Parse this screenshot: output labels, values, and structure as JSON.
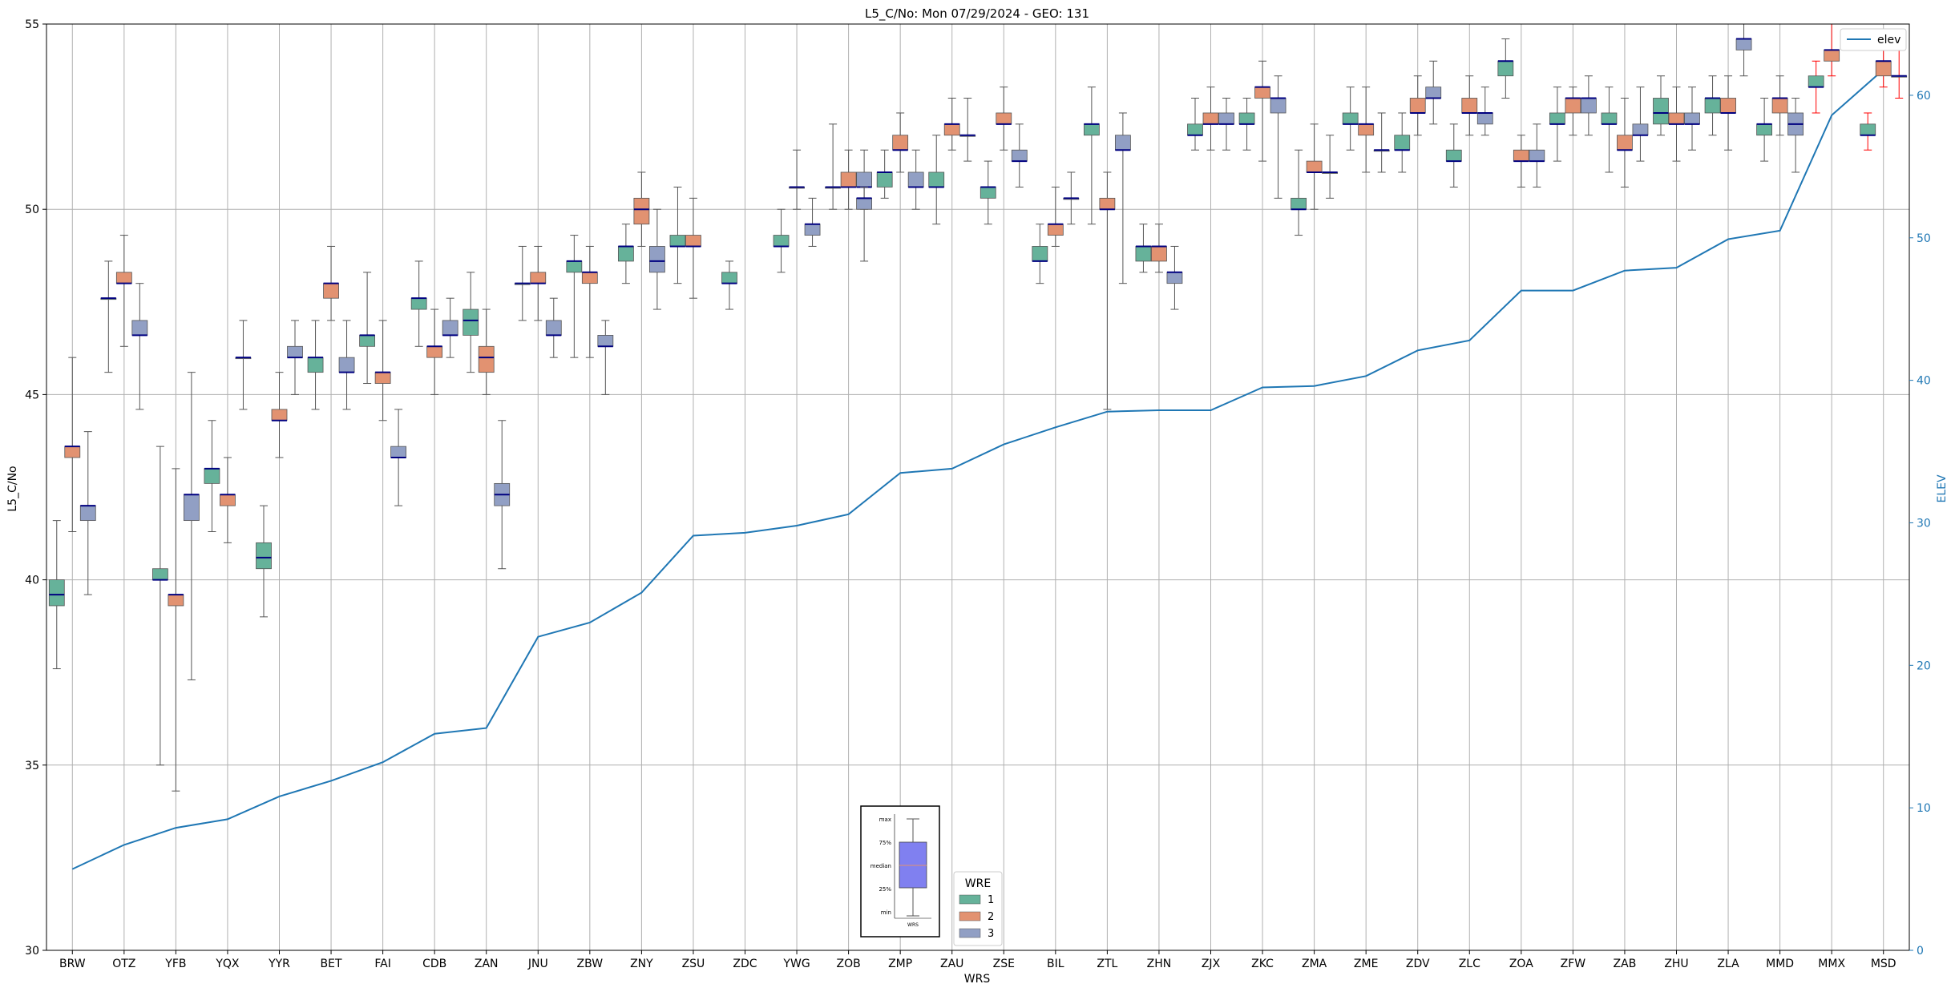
{
  "chart_data": {
    "type": "box",
    "title": "L5_C/No: Mon 07/29/2024 - GEO: 131",
    "xlabel": "WRS",
    "ylabel": "L5_C/No",
    "y2label": "ELEV",
    "ylim": [
      30,
      55
    ],
    "y2lim": [
      0,
      65
    ],
    "yticks": [
      30,
      35,
      40,
      45,
      50,
      55
    ],
    "y2ticks": [
      0,
      10,
      20,
      30,
      40,
      50,
      60
    ],
    "grid": true,
    "categories": [
      "BRW",
      "OTZ",
      "YFB",
      "YQX",
      "YYR",
      "BET",
      "FAI",
      "CDB",
      "ZAN",
      "JNU",
      "ZBW",
      "ZNY",
      "ZSU",
      "ZDC",
      "YWG",
      "ZOB",
      "ZMP",
      "ZAU",
      "ZSE",
      "BIL",
      "ZTL",
      "ZHN",
      "ZJX",
      "ZKC",
      "ZMA",
      "ZME",
      "ZDV",
      "ZLC",
      "ZOA",
      "ZFW",
      "ZAB",
      "ZHU",
      "ZLA",
      "MMD",
      "MMX",
      "MSD"
    ],
    "elev": {
      "name": "elev",
      "color": "#1f77b4",
      "values": [
        5.7,
        7.4,
        8.6,
        9.2,
        10.8,
        11.9,
        13.2,
        15.2,
        15.6,
        22.0,
        23.0,
        25.1,
        29.1,
        29.3,
        29.8,
        30.6,
        33.5,
        33.8,
        35.5,
        36.7,
        37.8,
        37.9,
        37.9,
        39.5,
        39.6,
        40.3,
        42.1,
        42.8,
        46.3,
        46.3,
        47.7,
        47.9,
        49.9,
        50.5,
        58.6,
        61.8
      ]
    },
    "legend_elev": {
      "label": "elev",
      "position": "upper-right"
    },
    "legend_wre": {
      "title": "WRE",
      "position": "lower-center",
      "items": [
        {
          "label": "1",
          "color": "#66b29a"
        },
        {
          "label": "2",
          "color": "#e29271"
        },
        {
          "label": "3",
          "color": "#919fc4"
        }
      ]
    },
    "key_legend": {
      "labels": [
        "max",
        "75%",
        "median",
        "25%",
        "min"
      ],
      "xlabel": "WRS",
      "fill": "#8080f0"
    },
    "colors": {
      "1": "#66b29a",
      "2": "#e29271",
      "3": "#919fc4",
      "median": "#000080",
      "outlier_whisker": "#ff0000",
      "elev": "#1f77b4"
    },
    "boxes": [
      {
        "cat": "BRW",
        "wre": 1,
        "min": 37.6,
        "q1": 39.3,
        "med": 39.6,
        "q3": 40.0,
        "max": 41.6
      },
      {
        "cat": "BRW",
        "wre": 2,
        "min": 41.3,
        "q1": 43.3,
        "med": 43.6,
        "q3": 43.6,
        "max": 46.0
      },
      {
        "cat": "BRW",
        "wre": 3,
        "min": 39.6,
        "q1": 41.6,
        "med": 42.0,
        "q3": 42.0,
        "max": 44.0
      },
      {
        "cat": "OTZ",
        "wre": 1,
        "min": 45.6,
        "q1": 47.6,
        "med": 47.6,
        "q3": 47.6,
        "max": 48.6
      },
      {
        "cat": "OTZ",
        "wre": 2,
        "min": 46.3,
        "q1": 48.0,
        "med": 48.0,
        "q3": 48.3,
        "max": 49.3
      },
      {
        "cat": "OTZ",
        "wre": 3,
        "min": 44.6,
        "q1": 46.6,
        "med": 46.6,
        "q3": 47.0,
        "max": 48.0
      },
      {
        "cat": "YFB",
        "wre": 1,
        "min": 35.0,
        "q1": 40.0,
        "med": 40.0,
        "q3": 40.3,
        "max": 43.6
      },
      {
        "cat": "YFB",
        "wre": 2,
        "min": 34.3,
        "q1": 39.3,
        "med": 39.6,
        "q3": 39.6,
        "max": 43.0
      },
      {
        "cat": "YFB",
        "wre": 3,
        "min": 37.3,
        "q1": 41.6,
        "med": 42.3,
        "q3": 42.3,
        "max": 45.6
      },
      {
        "cat": "YQX",
        "wre": 1,
        "min": 41.3,
        "q1": 42.6,
        "med": 43.0,
        "q3": 43.0,
        "max": 44.3
      },
      {
        "cat": "YQX",
        "wre": 2,
        "min": 41.0,
        "q1": 42.0,
        "med": 42.3,
        "q3": 42.3,
        "max": 43.3
      },
      {
        "cat": "YQX",
        "wre": 3,
        "min": 44.6,
        "q1": 46.0,
        "med": 46.0,
        "q3": 46.0,
        "max": 47.0
      },
      {
        "cat": "YYR",
        "wre": 1,
        "min": 39.0,
        "q1": 40.3,
        "med": 40.6,
        "q3": 41.0,
        "max": 42.0
      },
      {
        "cat": "YYR",
        "wre": 2,
        "min": 43.3,
        "q1": 44.3,
        "med": 44.3,
        "q3": 44.6,
        "max": 45.6
      },
      {
        "cat": "YYR",
        "wre": 3,
        "min": 45.0,
        "q1": 46.0,
        "med": 46.0,
        "q3": 46.3,
        "max": 47.0
      },
      {
        "cat": "BET",
        "wre": 1,
        "min": 44.6,
        "q1": 45.6,
        "med": 46.0,
        "q3": 46.0,
        "max": 47.0
      },
      {
        "cat": "BET",
        "wre": 2,
        "min": 47.0,
        "q1": 47.6,
        "med": 48.0,
        "q3": 48.0,
        "max": 49.0
      },
      {
        "cat": "BET",
        "wre": 3,
        "min": 44.6,
        "q1": 45.6,
        "med": 45.6,
        "q3": 46.0,
        "max": 47.0
      },
      {
        "cat": "FAI",
        "wre": 1,
        "min": 45.3,
        "q1": 46.3,
        "med": 46.6,
        "q3": 46.6,
        "max": 48.3
      },
      {
        "cat": "FAI",
        "wre": 2,
        "min": 44.3,
        "q1": 45.3,
        "med": 45.6,
        "q3": 45.6,
        "max": 47.0
      },
      {
        "cat": "FAI",
        "wre": 3,
        "min": 42.0,
        "q1": 43.3,
        "med": 43.3,
        "q3": 43.6,
        "max": 44.6
      },
      {
        "cat": "CDB",
        "wre": 1,
        "min": 46.3,
        "q1": 47.3,
        "med": 47.6,
        "q3": 47.6,
        "max": 48.6
      },
      {
        "cat": "CDB",
        "wre": 2,
        "min": 45.0,
        "q1": 46.0,
        "med": 46.3,
        "q3": 46.3,
        "max": 47.3
      },
      {
        "cat": "CDB",
        "wre": 3,
        "min": 46.0,
        "q1": 46.6,
        "med": 46.6,
        "q3": 47.0,
        "max": 47.6
      },
      {
        "cat": "ZAN",
        "wre": 1,
        "min": 45.6,
        "q1": 46.6,
        "med": 47.0,
        "q3": 47.3,
        "max": 48.3
      },
      {
        "cat": "ZAN",
        "wre": 2,
        "min": 45.0,
        "q1": 45.6,
        "med": 46.0,
        "q3": 46.3,
        "max": 47.3
      },
      {
        "cat": "ZAN",
        "wre": 3,
        "min": 40.3,
        "q1": 42.0,
        "med": 42.3,
        "q3": 42.6,
        "max": 44.3
      },
      {
        "cat": "JNU",
        "wre": 1,
        "min": 47.0,
        "q1": 48.0,
        "med": 48.0,
        "q3": 48.0,
        "max": 49.0
      },
      {
        "cat": "JNU",
        "wre": 2,
        "min": 47.0,
        "q1": 48.0,
        "med": 48.0,
        "q3": 48.3,
        "max": 49.0
      },
      {
        "cat": "JNU",
        "wre": 3,
        "min": 46.0,
        "q1": 46.6,
        "med": 46.6,
        "q3": 47.0,
        "max": 47.6
      },
      {
        "cat": "ZBW",
        "wre": 1,
        "min": 46.0,
        "q1": 48.3,
        "med": 48.6,
        "q3": 48.6,
        "max": 49.3
      },
      {
        "cat": "ZBW",
        "wre": 2,
        "min": 46.0,
        "q1": 48.0,
        "med": 48.3,
        "q3": 48.3,
        "max": 49.0
      },
      {
        "cat": "ZBW",
        "wre": 3,
        "min": 45.0,
        "q1": 46.3,
        "med": 46.3,
        "q3": 46.6,
        "max": 47.0
      },
      {
        "cat": "ZNY",
        "wre": 1,
        "min": 48.0,
        "q1": 48.6,
        "med": 49.0,
        "q3": 49.0,
        "max": 49.6
      },
      {
        "cat": "ZNY",
        "wre": 2,
        "min": 49.0,
        "q1": 49.6,
        "med": 50.0,
        "q3": 50.3,
        "max": 51.0
      },
      {
        "cat": "ZNY",
        "wre": 3,
        "min": 47.3,
        "q1": 48.3,
        "med": 48.6,
        "q3": 49.0,
        "max": 50.0
      },
      {
        "cat": "ZSU",
        "wre": 1,
        "min": 48.0,
        "q1": 49.0,
        "med": 49.0,
        "q3": 49.3,
        "max": 50.6
      },
      {
        "cat": "ZSU",
        "wre": 2,
        "min": 47.6,
        "q1": 49.0,
        "med": 49.0,
        "q3": 49.3,
        "max": 50.3
      },
      {
        "cat": "ZDC",
        "wre": 1,
        "min": 47.3,
        "q1": 48.0,
        "med": 48.0,
        "q3": 48.3,
        "max": 48.6
      },
      {
        "cat": "YWG",
        "wre": 3,
        "min": 49.0,
        "q1": 49.3,
        "med": 49.6,
        "q3": 49.6,
        "max": 50.3
      },
      {
        "cat": "YWG",
        "wre": 1,
        "min": 48.3,
        "q1": 49.0,
        "med": 49.0,
        "q3": 49.3,
        "max": 50.0
      },
      {
        "cat": "YWG",
        "wre": 2,
        "min": 50.0,
        "q1": 50.6,
        "med": 50.6,
        "q3": 50.6,
        "max": 51.6
      },
      {
        "cat": "ZOB",
        "wre": 3,
        "min": 50.0,
        "q1": 50.6,
        "med": 50.6,
        "q3": 51.0,
        "max": 51.6
      },
      {
        "cat": "ZOB",
        "wre": 1,
        "min": 50.0,
        "q1": 50.6,
        "med": 50.6,
        "q3": 50.6,
        "max": 52.3
      },
      {
        "cat": "ZOB",
        "wre": 2,
        "min": 50.0,
        "q1": 50.6,
        "med": 50.6,
        "q3": 51.0,
        "max": 51.6
      },
      {
        "cat": "ZOB",
        "wre": 3,
        "min": 48.6,
        "q1": 50.0,
        "med": 50.3,
        "q3": 50.3,
        "max": 50.6
      },
      {
        "cat": "ZMP",
        "wre": 1,
        "min": 50.3,
        "q1": 50.6,
        "med": 51.0,
        "q3": 51.0,
        "max": 51.6
      },
      {
        "cat": "ZMP",
        "wre": 2,
        "min": 51.0,
        "q1": 51.6,
        "med": 51.6,
        "q3": 52.0,
        "max": 52.6
      },
      {
        "cat": "ZMP",
        "wre": 3,
        "min": 50.0,
        "q1": 50.6,
        "med": 50.6,
        "q3": 51.0,
        "max": 51.6
      },
      {
        "cat": "ZAU",
        "wre": 1,
        "min": 49.6,
        "q1": 50.6,
        "med": 50.6,
        "q3": 51.0,
        "max": 52.0
      },
      {
        "cat": "ZAU",
        "wre": 2,
        "min": 51.6,
        "q1": 52.0,
        "med": 52.3,
        "q3": 52.3,
        "max": 53.0
      },
      {
        "cat": "ZAU",
        "wre": 3,
        "min": 51.3,
        "q1": 52.0,
        "med": 52.0,
        "q3": 52.0,
        "max": 53.0
      },
      {
        "cat": "ZSE",
        "wre": 1,
        "min": 49.6,
        "q1": 50.3,
        "med": 50.6,
        "q3": 50.6,
        "max": 51.3
      },
      {
        "cat": "ZSE",
        "wre": 2,
        "min": 51.6,
        "q1": 52.3,
        "med": 52.3,
        "q3": 52.6,
        "max": 53.3
      },
      {
        "cat": "ZSE",
        "wre": 3,
        "min": 50.6,
        "q1": 51.3,
        "med": 51.3,
        "q3": 51.6,
        "max": 52.3
      },
      {
        "cat": "BIL",
        "wre": 1,
        "min": 48.0,
        "q1": 48.6,
        "med": 48.6,
        "q3": 49.0,
        "max": 49.6
      },
      {
        "cat": "BIL",
        "wre": 2,
        "min": 49.0,
        "q1": 49.3,
        "med": 49.6,
        "q3": 49.6,
        "max": 50.6
      },
      {
        "cat": "BIL",
        "wre": 3,
        "min": 49.6,
        "q1": 50.3,
        "med": 50.3,
        "q3": 50.3,
        "max": 51.0
      },
      {
        "cat": "ZTL",
        "wre": 1,
        "min": 49.6,
        "q1": 52.0,
        "med": 52.3,
        "q3": 52.3,
        "max": 53.3
      },
      {
        "cat": "ZTL",
        "wre": 2,
        "min": 44.6,
        "q1": 50.0,
        "med": 50.0,
        "q3": 50.3,
        "max": 51.0
      },
      {
        "cat": "ZTL",
        "wre": 3,
        "min": 48.0,
        "q1": 51.6,
        "med": 51.6,
        "q3": 52.0,
        "max": 52.6
      },
      {
        "cat": "ZHN",
        "wre": 1,
        "min": 48.3,
        "q1": 48.6,
        "med": 49.0,
        "q3": 49.0,
        "max": 49.6
      },
      {
        "cat": "ZHN",
        "wre": 2,
        "min": 48.3,
        "q1": 48.6,
        "med": 49.0,
        "q3": 49.0,
        "max": 49.6
      },
      {
        "cat": "ZHN",
        "wre": 3,
        "min": 47.3,
        "q1": 48.0,
        "med": 48.3,
        "q3": 48.3,
        "max": 49.0
      },
      {
        "cat": "ZJX",
        "wre": 1,
        "min": 51.6,
        "q1": 52.0,
        "med": 52.0,
        "q3": 52.3,
        "max": 53.0
      },
      {
        "cat": "ZJX",
        "wre": 2,
        "min": 51.6,
        "q1": 52.3,
        "med": 52.3,
        "q3": 52.6,
        "max": 53.3
      },
      {
        "cat": "ZJX",
        "wre": 3,
        "min": 51.6,
        "q1": 52.3,
        "med": 52.3,
        "q3": 52.6,
        "max": 53.0
      },
      {
        "cat": "ZKC",
        "wre": 1,
        "min": 51.6,
        "q1": 52.3,
        "med": 52.3,
        "q3": 52.6,
        "max": 53.0
      },
      {
        "cat": "ZKC",
        "wre": 2,
        "min": 51.3,
        "q1": 53.0,
        "med": 53.3,
        "q3": 53.3,
        "max": 54.0
      },
      {
        "cat": "ZKC",
        "wre": 3,
        "min": 50.3,
        "q1": 52.6,
        "med": 53.0,
        "q3": 53.0,
        "max": 53.6
      },
      {
        "cat": "ZMA",
        "wre": 1,
        "min": 49.3,
        "q1": 50.0,
        "med": 50.0,
        "q3": 50.3,
        "max": 51.6
      },
      {
        "cat": "ZMA",
        "wre": 2,
        "min": 50.0,
        "q1": 51.0,
        "med": 51.0,
        "q3": 51.3,
        "max": 52.3
      },
      {
        "cat": "ZMA",
        "wre": 3,
        "min": 50.3,
        "q1": 51.0,
        "med": 51.0,
        "q3": 51.0,
        "max": 52.0
      },
      {
        "cat": "ZME",
        "wre": 1,
        "min": 51.6,
        "q1": 52.3,
        "med": 52.3,
        "q3": 52.6,
        "max": 53.3
      },
      {
        "cat": "ZME",
        "wre": 2,
        "min": 51.0,
        "q1": 52.0,
        "med": 52.3,
        "q3": 52.3,
        "max": 53.3
      },
      {
        "cat": "ZME",
        "wre": 3,
        "min": 51.0,
        "q1": 51.6,
        "med": 51.6,
        "q3": 51.6,
        "max": 52.6
      },
      {
        "cat": "ZDV",
        "wre": 1,
        "min": 51.0,
        "q1": 51.6,
        "med": 51.6,
        "q3": 52.0,
        "max": 52.6
      },
      {
        "cat": "ZDV",
        "wre": 2,
        "min": 52.0,
        "q1": 52.6,
        "med": 52.6,
        "q3": 53.0,
        "max": 53.6
      },
      {
        "cat": "ZDV",
        "wre": 3,
        "min": 52.3,
        "q1": 53.0,
        "med": 53.0,
        "q3": 53.3,
        "max": 54.0
      },
      {
        "cat": "ZLC",
        "wre": 1,
        "min": 50.6,
        "q1": 51.3,
        "med": 51.3,
        "q3": 51.6,
        "max": 52.3
      },
      {
        "cat": "ZLC",
        "wre": 2,
        "min": 52.0,
        "q1": 52.6,
        "med": 52.6,
        "q3": 53.0,
        "max": 53.6
      },
      {
        "cat": "ZLC",
        "wre": 3,
        "min": 52.0,
        "q1": 52.3,
        "med": 52.6,
        "q3": 52.6,
        "max": 53.3
      },
      {
        "cat": "ZOA",
        "wre": 1,
        "min": 53.0,
        "q1": 53.6,
        "med": 54.0,
        "q3": 54.0,
        "max": 54.6
      },
      {
        "cat": "ZOA",
        "wre": 2,
        "min": 50.6,
        "q1": 51.3,
        "med": 51.3,
        "q3": 51.6,
        "max": 52.0
      },
      {
        "cat": "ZOA",
        "wre": 3,
        "min": 50.6,
        "q1": 51.3,
        "med": 51.3,
        "q3": 51.6,
        "max": 52.3
      },
      {
        "cat": "ZFW",
        "wre": 1,
        "min": 51.3,
        "q1": 52.3,
        "med": 52.3,
        "q3": 52.6,
        "max": 53.3
      },
      {
        "cat": "ZFW",
        "wre": 2,
        "min": 52.0,
        "q1": 52.6,
        "med": 53.0,
        "q3": 53.0,
        "max": 53.3
      },
      {
        "cat": "ZFW",
        "wre": 3,
        "min": 52.0,
        "q1": 52.6,
        "med": 53.0,
        "q3": 53.0,
        "max": 53.6
      },
      {
        "cat": "ZAB",
        "wre": 1,
        "min": 51.0,
        "q1": 52.3,
        "med": 52.3,
        "q3": 52.6,
        "max": 53.3
      },
      {
        "cat": "ZAB",
        "wre": 2,
        "min": 50.6,
        "q1": 51.6,
        "med": 51.6,
        "q3": 52.0,
        "max": 53.0
      },
      {
        "cat": "ZAB",
        "wre": 3,
        "min": 51.3,
        "q1": 52.0,
        "med": 52.0,
        "q3": 52.3,
        "max": 53.3
      },
      {
        "cat": "ZHU",
        "wre": 1,
        "min": 52.0,
        "q1": 52.3,
        "med": 52.6,
        "q3": 53.0,
        "max": 53.6
      },
      {
        "cat": "ZHU",
        "wre": 2,
        "min": 51.3,
        "q1": 52.3,
        "med": 52.3,
        "q3": 52.6,
        "max": 53.3
      },
      {
        "cat": "ZHU",
        "wre": 3,
        "min": 51.6,
        "q1": 52.3,
        "med": 52.3,
        "q3": 52.6,
        "max": 53.3
      },
      {
        "cat": "ZLA",
        "wre": 1,
        "min": 52.0,
        "q1": 52.6,
        "med": 53.0,
        "q3": 53.0,
        "max": 53.6
      },
      {
        "cat": "ZLA",
        "wre": 2,
        "min": 51.6,
        "q1": 52.6,
        "med": 52.6,
        "q3": 53.0,
        "max": 53.6
      },
      {
        "cat": "ZLA",
        "wre": 3,
        "min": 53.6,
        "q1": 54.3,
        "med": 54.6,
        "q3": 54.6,
        "max": 55.0
      },
      {
        "cat": "MMD",
        "wre": 1,
        "min": 51.3,
        "q1": 52.0,
        "med": 52.3,
        "q3": 52.3,
        "max": 53.0
      },
      {
        "cat": "MMD",
        "wre": 2,
        "min": 52.0,
        "q1": 52.6,
        "med": 53.0,
        "q3": 53.0,
        "max": 53.6
      },
      {
        "cat": "MMD",
        "wre": 3,
        "min": 51.0,
        "q1": 52.0,
        "med": 52.3,
        "q3": 52.6,
        "max": 53.0
      },
      {
        "cat": "MMX",
        "wre": 1,
        "min": 52.6,
        "q1": 53.3,
        "med": 53.3,
        "q3": 53.6,
        "max": 54.0,
        "flag": true
      },
      {
        "cat": "MMX",
        "wre": 2,
        "min": 53.6,
        "q1": 54.0,
        "med": 54.3,
        "q3": 54.3,
        "max": 55.0,
        "flag": true
      },
      {
        "cat": "MSD",
        "wre": 1,
        "min": 51.6,
        "q1": 52.0,
        "med": 52.0,
        "q3": 52.3,
        "max": 52.6,
        "flag": true
      },
      {
        "cat": "MSD",
        "wre": 2,
        "min": 53.3,
        "q1": 53.6,
        "med": 54.0,
        "q3": 54.0,
        "max": 54.6,
        "flag": true
      },
      {
        "cat": "MSD",
        "wre": 3,
        "min": 53.0,
        "q1": 53.6,
        "med": 53.6,
        "q3": 53.6,
        "max": 54.6,
        "flag": true
      }
    ]
  }
}
